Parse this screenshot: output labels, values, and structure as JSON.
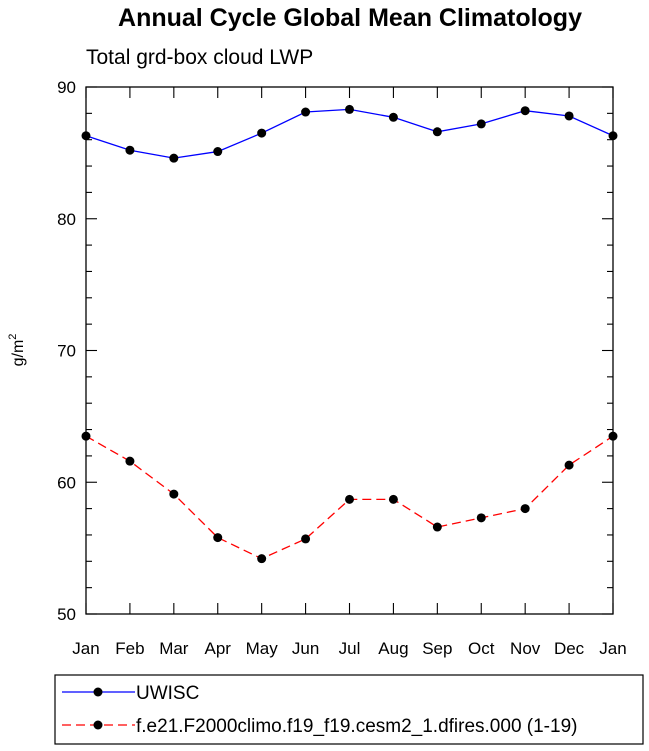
{
  "chart_data": {
    "type": "line",
    "title": "Annual Cycle Global Mean Climatology",
    "subtitle": "Total grd-box cloud LWP",
    "ylabel": "g/m",
    "ylabel_sup": "2",
    "xlabel": "",
    "categories": [
      "Jan",
      "Feb",
      "Mar",
      "Apr",
      "May",
      "Jun",
      "Jul",
      "Aug",
      "Sep",
      "Oct",
      "Nov",
      "Dec",
      "Jan"
    ],
    "ylim": [
      50,
      90
    ],
    "yticks": [
      50,
      60,
      70,
      80,
      90
    ],
    "grid": false,
    "legend_position": "bottom",
    "series": [
      {
        "name": "UWISC",
        "color": "#0000ff",
        "dash": "solid",
        "marker": "circle",
        "values": [
          86.3,
          85.2,
          84.6,
          85.1,
          86.5,
          88.1,
          88.3,
          87.7,
          86.6,
          87.2,
          88.2,
          87.8,
          86.3
        ]
      },
      {
        "name": "f.e21.F2000climo.f19_f19.cesm2_1.dfires.000 (1-19)",
        "color": "#ff0000",
        "dash": "dashed",
        "marker": "circle",
        "values": [
          63.5,
          61.6,
          59.1,
          55.8,
          54.2,
          55.7,
          58.7,
          58.7,
          56.6,
          57.3,
          58.0,
          61.3,
          63.5
        ]
      }
    ]
  }
}
